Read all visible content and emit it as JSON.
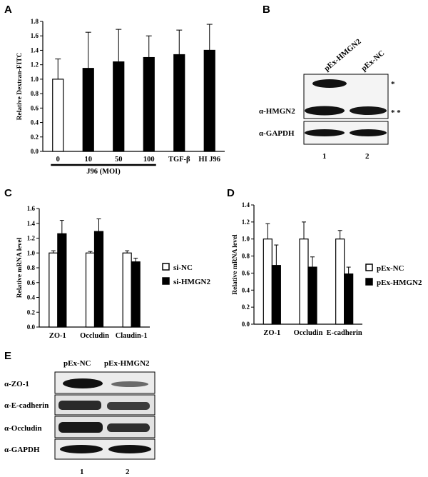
{
  "panels": {
    "A": "A",
    "B": "B",
    "C": "C",
    "D": "D",
    "E": "E"
  },
  "chart_data": [
    {
      "id": "A",
      "type": "bar",
      "ylabel": "Relative Dextran-FITC",
      "ylim": [
        0,
        1.8
      ],
      "yticks": [
        0.0,
        0.2,
        0.4,
        0.6,
        0.8,
        1.0,
        1.2,
        1.4,
        1.6,
        1.8
      ],
      "categories": [
        "0",
        "10",
        "50",
        "100",
        "TGF-β",
        "HI J96"
      ],
      "group_label": "J96 (MOI)",
      "values": [
        1.0,
        1.15,
        1.24,
        1.3,
        1.34,
        1.4
      ],
      "errors": [
        0.28,
        0.5,
        0.45,
        0.3,
        0.34,
        0.36
      ],
      "fills": [
        "white",
        "black",
        "black",
        "black",
        "black",
        "black"
      ]
    },
    {
      "id": "C",
      "type": "bar",
      "ylabel": "Relative mRNA level",
      "ylim": [
        0,
        1.6
      ],
      "yticks": [
        0.0,
        0.2,
        0.4,
        0.6,
        0.8,
        1.0,
        1.2,
        1.4,
        1.6
      ],
      "categories": [
        "ZO-1",
        "Occludin",
        "Claudin-1"
      ],
      "series": [
        {
          "name": "si-NC",
          "values": [
            1.0,
            1.0,
            1.0
          ],
          "errors": [
            0.03,
            0.02,
            0.03
          ],
          "fill": "white"
        },
        {
          "name": "si-HMGN2",
          "values": [
            1.26,
            1.29,
            0.88
          ],
          "errors": [
            0.18,
            0.17,
            0.05
          ],
          "fill": "black"
        }
      ],
      "legend": "right"
    },
    {
      "id": "D",
      "type": "bar",
      "ylabel": "Relative mRNA level",
      "ylim": [
        0,
        1.4
      ],
      "yticks": [
        0.0,
        0.2,
        0.4,
        0.6,
        0.8,
        1.0,
        1.2,
        1.4
      ],
      "categories": [
        "ZO-1",
        "Occludin",
        "E-cadherin"
      ],
      "series": [
        {
          "name": "pEx-NC",
          "values": [
            1.0,
            1.0,
            1.0
          ],
          "errors": [
            0.18,
            0.2,
            0.1
          ],
          "fill": "white"
        },
        {
          "name": "pEx-HMGN2",
          "values": [
            0.69,
            0.67,
            0.59
          ],
          "errors": [
            0.24,
            0.12,
            0.08
          ],
          "fill": "black"
        }
      ],
      "legend": "right"
    }
  ],
  "blot_b": {
    "lanes": [
      "pEx-HMGN2",
      "pEx-NC"
    ],
    "rows": [
      "α-HMGN2",
      "α-GAPDH"
    ],
    "markers": [
      "*",
      "* *"
    ],
    "lane_numbers": [
      "1",
      "2"
    ]
  },
  "blot_e": {
    "lanes": [
      "pEx-NC",
      "pEx-HMGN2"
    ],
    "rows": [
      "α-ZO-1",
      "α-E-cadherin",
      "α-Occludin",
      "α-GAPDH"
    ],
    "lane_numbers": [
      "1",
      "2"
    ]
  }
}
